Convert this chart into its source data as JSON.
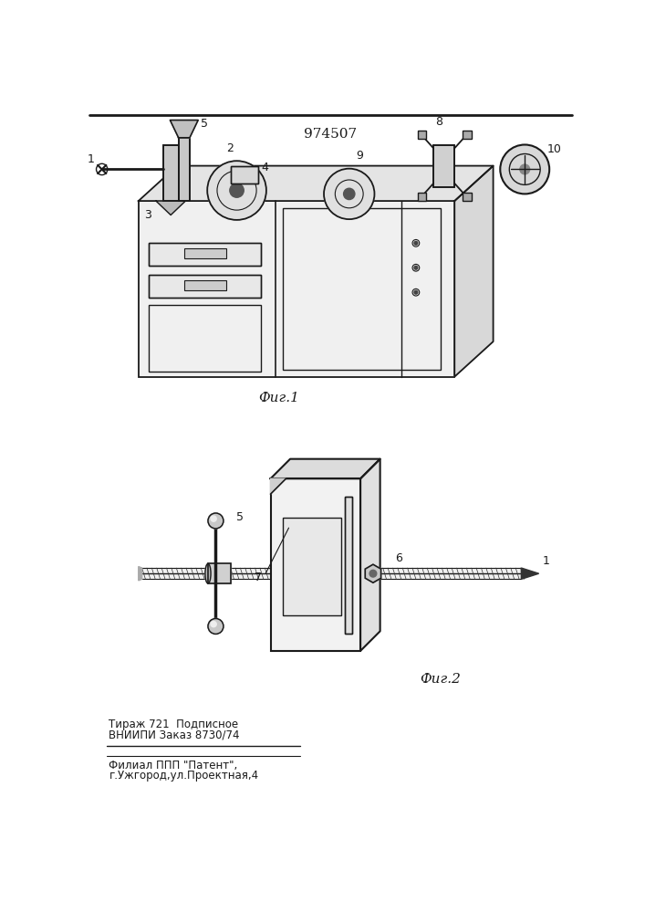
{
  "patent_number": "974507",
  "fig1_caption": "Фиг.1",
  "fig2_caption": "Фиг.2",
  "footer_line1": "ВНИИПИ Заказ 8730/74",
  "footer_line2": "Тираж 721  Подписное",
  "footer_line3": "Филиал ППП \"Патент\",",
  "footer_line4": "г.Ужгород,ул.Проектная,4",
  "bg_color": "#ffffff",
  "line_color": "#1a1a1a",
  "text_color": "#1a1a1a"
}
